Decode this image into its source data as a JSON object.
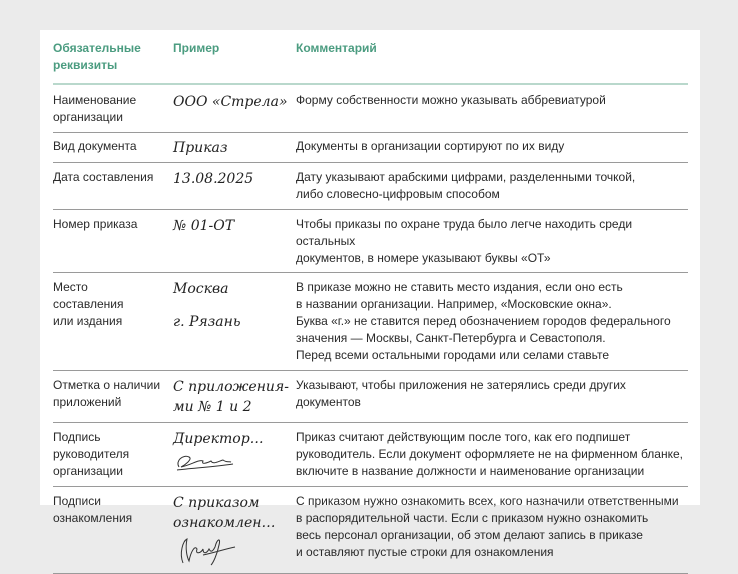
{
  "header": {
    "col1": [
      "Обязательные",
      "реквизиты"
    ],
    "col2": "Пример",
    "col3": "Комментарий"
  },
  "rows": [
    {
      "req": [
        "Наименование",
        "организации"
      ],
      "example": [
        "ООО «Стрела»"
      ],
      "comment": [
        "Форму собственности можно указывать аббревиатурой"
      ]
    },
    {
      "req": [
        "Вид документа"
      ],
      "example": [
        "Приказ"
      ],
      "comment": [
        "Документы в организации сортируют по их виду"
      ]
    },
    {
      "req": [
        "Дата составления"
      ],
      "example": [
        "13.08.2025"
      ],
      "comment": [
        "Дату указывают арабскими цифрами, разделенными точкой,",
        "либо словесно-цифровым способом"
      ]
    },
    {
      "req": [
        "Номер приказа"
      ],
      "example": [
        "№ 01-ОТ"
      ],
      "comment": [
        "Чтобы приказы по охране труда было легче находить среди остальных",
        "документов, в номере указывают буквы «ОТ»"
      ]
    },
    {
      "req": [
        "Место",
        "составления",
        "или издания"
      ],
      "example": [
        "Москва",
        "г. Рязань"
      ],
      "comment": [
        "В приказе можно не ставить место издания, если оно есть",
        "в названии организации. Например, «Московские окна».",
        "Буква «г.» не ставится перед обозначением городов федерального",
        "значения — Москвы, Санкт-Петербурга и Севастополя.",
        "Перед всеми остальными городами или селами ставьте"
      ]
    },
    {
      "req": [
        "Отметка о наличии",
        "приложений"
      ],
      "example": [
        "С приложения-",
        "ми № 1 и 2"
      ],
      "comment": [
        "Указывают, чтобы приложения не затерялись среди других",
        "документов"
      ]
    },
    {
      "req": [
        "Подпись",
        "руководителя",
        "организации"
      ],
      "example": [
        "Директор…"
      ],
      "comment": [
        "Приказ считают действующим после того, как его подпишет",
        "руководитель. Если документ оформляете не на фирменном бланке,",
        "включите в название должности и наименование организации"
      ]
    },
    {
      "req": [
        "Подписи",
        "ознакомления"
      ],
      "example": [
        "С приказом",
        "ознакомлен…"
      ],
      "comment": [
        "С приказом нужно ознакомить всех, кого назначили ответственными",
        "в распорядительной части. Если с приказом нужно ознакомить",
        "весь персонал организации, об этом делают запись в приказе",
        "и оставляют пустые строки для ознакомления"
      ]
    }
  ],
  "colors": {
    "header_text": "#4b9c80",
    "header_rule": "#b9d8cc",
    "background": "#ebebeb"
  }
}
